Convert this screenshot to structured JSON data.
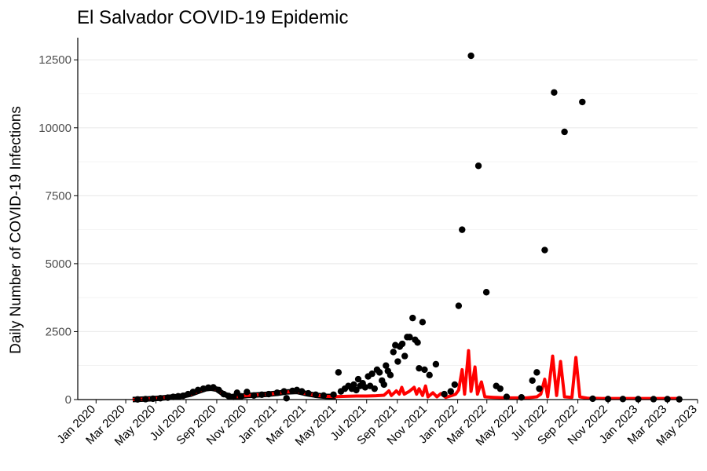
{
  "chart_data": {
    "type": "scatter",
    "title": "El Salvador COVID-19 Epidemic",
    "xlabel": "",
    "ylabel": "Daily Number of COVID-19 Infections",
    "x_axis": {
      "type": "date",
      "range": [
        "2019-11-25",
        "2023-05-01"
      ],
      "ticks": [
        {
          "date": "2020-01-01",
          "label": "Jan 2020"
        },
        {
          "date": "2020-03-01",
          "label": "Mar 2020"
        },
        {
          "date": "2020-05-01",
          "label": "May 2020"
        },
        {
          "date": "2020-07-01",
          "label": "Jul 2020"
        },
        {
          "date": "2020-09-01",
          "label": "Sep 2020"
        },
        {
          "date": "2020-11-01",
          "label": "Nov 2020"
        },
        {
          "date": "2021-01-01",
          "label": "Jan 2021"
        },
        {
          "date": "2021-03-01",
          "label": "Mar 2021"
        },
        {
          "date": "2021-05-01",
          "label": "May 2021"
        },
        {
          "date": "2021-07-01",
          "label": "Jul 2021"
        },
        {
          "date": "2021-09-01",
          "label": "Sep 2021"
        },
        {
          "date": "2021-11-01",
          "label": "Nov 2021"
        },
        {
          "date": "2022-01-01",
          "label": "Jan 2022"
        },
        {
          "date": "2022-03-01",
          "label": "Mar 2022"
        },
        {
          "date": "2022-05-01",
          "label": "May 2022"
        },
        {
          "date": "2022-07-01",
          "label": "Jul 2022"
        },
        {
          "date": "2022-09-01",
          "label": "Sep 2022"
        },
        {
          "date": "2022-11-01",
          "label": "Nov 2022"
        },
        {
          "date": "2023-01-01",
          "label": "Jan 2023"
        },
        {
          "date": "2023-03-01",
          "label": "Mar 2023"
        },
        {
          "date": "2023-05-01",
          "label": "May 2023"
        }
      ]
    },
    "y_axis": {
      "range": [
        0,
        13200
      ],
      "ticks": [
        {
          "value": 0,
          "label": "0"
        },
        {
          "value": 2500,
          "label": "2500"
        },
        {
          "value": 5000,
          "label": "5000"
        },
        {
          "value": 7500,
          "label": "7500"
        },
        {
          "value": 10000,
          "label": "10000"
        },
        {
          "value": 12500,
          "label": "12500"
        }
      ],
      "minor_grid": [
        1250,
        3750,
        6250,
        8750,
        11250
      ]
    },
    "grid": "horizontal",
    "legend": "none",
    "colors": {
      "points": "#000000",
      "line": "#ff0000",
      "grid": "#ebebeb",
      "axis": "#000000"
    },
    "series": [
      {
        "kind": "points",
        "points": [
          [
            "2020-03-25",
            5
          ],
          [
            "2020-04-10",
            15
          ],
          [
            "2020-04-25",
            30
          ],
          [
            "2020-05-10",
            50
          ],
          [
            "2020-05-25",
            70
          ],
          [
            "2020-06-05",
            100
          ],
          [
            "2020-06-15",
            120
          ],
          [
            "2020-06-25",
            140
          ],
          [
            "2020-07-05",
            200
          ],
          [
            "2020-07-15",
            280
          ],
          [
            "2020-07-25",
            350
          ],
          [
            "2020-08-05",
            400
          ],
          [
            "2020-08-15",
            440
          ],
          [
            "2020-08-25",
            450
          ],
          [
            "2020-09-05",
            350
          ],
          [
            "2020-09-15",
            200
          ],
          [
            "2020-09-25",
            130
          ],
          [
            "2020-10-05",
            100
          ],
          [
            "2020-10-12",
            250
          ],
          [
            "2020-10-20",
            120
          ],
          [
            "2020-11-01",
            280
          ],
          [
            "2020-11-15",
            150
          ],
          [
            "2020-12-01",
            180
          ],
          [
            "2020-12-15",
            200
          ],
          [
            "2021-01-01",
            250
          ],
          [
            "2021-01-15",
            300
          ],
          [
            "2021-01-20",
            50
          ],
          [
            "2021-02-01",
            320
          ],
          [
            "2021-02-10",
            350
          ],
          [
            "2021-02-20",
            300
          ],
          [
            "2021-03-05",
            230
          ],
          [
            "2021-03-20",
            180
          ],
          [
            "2021-04-05",
            150
          ],
          [
            "2021-04-25",
            180
          ],
          [
            "2021-05-05",
            1000
          ],
          [
            "2021-05-10",
            300
          ],
          [
            "2021-05-18",
            400
          ],
          [
            "2021-05-25",
            500
          ],
          [
            "2021-06-01",
            400
          ],
          [
            "2021-06-05",
            550
          ],
          [
            "2021-06-10",
            350
          ],
          [
            "2021-06-14",
            750
          ],
          [
            "2021-06-18",
            500
          ],
          [
            "2021-06-23",
            600
          ],
          [
            "2021-06-28",
            450
          ],
          [
            "2021-07-04",
            850
          ],
          [
            "2021-07-08",
            500
          ],
          [
            "2021-07-12",
            950
          ],
          [
            "2021-07-17",
            400
          ],
          [
            "2021-07-22",
            1100
          ],
          [
            "2021-07-27",
            1000
          ],
          [
            "2021-08-01",
            700
          ],
          [
            "2021-08-05",
            550
          ],
          [
            "2021-08-09",
            1250
          ],
          [
            "2021-08-13",
            1050
          ],
          [
            "2021-08-18",
            900
          ],
          [
            "2021-08-24",
            1750
          ],
          [
            "2021-08-28",
            2000
          ],
          [
            "2021-09-02",
            1400
          ],
          [
            "2021-09-06",
            1950
          ],
          [
            "2021-09-11",
            2050
          ],
          [
            "2021-09-16",
            1600
          ],
          [
            "2021-09-21",
            2300
          ],
          [
            "2021-09-26",
            2300
          ],
          [
            "2021-10-02",
            3000
          ],
          [
            "2021-10-07",
            2200
          ],
          [
            "2021-10-12",
            2100
          ],
          [
            "2021-10-15",
            1150
          ],
          [
            "2021-10-22",
            2850
          ],
          [
            "2021-10-26",
            1100
          ],
          [
            "2021-11-05",
            900
          ],
          [
            "2021-11-18",
            1300
          ],
          [
            "2021-12-05",
            200
          ],
          [
            "2021-12-18",
            300
          ],
          [
            "2021-12-26",
            550
          ],
          [
            "2022-01-03",
            3450
          ],
          [
            "2022-01-10",
            6250
          ],
          [
            "2022-01-28",
            12650
          ],
          [
            "2022-02-12",
            8600
          ],
          [
            "2022-02-28",
            3950
          ],
          [
            "2022-03-20",
            500
          ],
          [
            "2022-03-28",
            400
          ],
          [
            "2022-04-10",
            100
          ],
          [
            "2022-05-10",
            80
          ],
          [
            "2022-06-01",
            700
          ],
          [
            "2022-06-10",
            1000
          ],
          [
            "2022-06-15",
            400
          ],
          [
            "2022-06-26",
            5500
          ],
          [
            "2022-07-15",
            11300
          ],
          [
            "2022-08-05",
            9850
          ],
          [
            "2022-09-10",
            10950
          ],
          [
            "2022-10-01",
            30
          ],
          [
            "2022-11-01",
            20
          ],
          [
            "2022-12-01",
            20
          ],
          [
            "2023-01-01",
            15
          ],
          [
            "2023-02-01",
            15
          ],
          [
            "2023-03-01",
            15
          ],
          [
            "2023-03-25",
            10
          ]
        ]
      },
      {
        "kind": "line",
        "points": [
          [
            "2020-03-15",
            0
          ],
          [
            "2020-04-01",
            15
          ],
          [
            "2020-04-20",
            30
          ],
          [
            "2020-05-10",
            50
          ],
          [
            "2020-06-01",
            90
          ],
          [
            "2020-06-20",
            120
          ],
          [
            "2020-07-10",
            200
          ],
          [
            "2020-07-25",
            300
          ],
          [
            "2020-08-10",
            400
          ],
          [
            "2020-08-20",
            420
          ],
          [
            "2020-09-01",
            380
          ],
          [
            "2020-09-15",
            200
          ],
          [
            "2020-10-01",
            100
          ],
          [
            "2020-10-15",
            110
          ],
          [
            "2020-11-01",
            150
          ],
          [
            "2020-11-20",
            170
          ],
          [
            "2020-12-10",
            190
          ],
          [
            "2021-01-01",
            230
          ],
          [
            "2021-01-20",
            280
          ],
          [
            "2021-02-10",
            300
          ],
          [
            "2021-03-01",
            220
          ],
          [
            "2021-03-20",
            160
          ],
          [
            "2021-04-10",
            120
          ],
          [
            "2021-04-30",
            110
          ],
          [
            "2021-05-20",
            120
          ],
          [
            "2021-06-10",
            130
          ],
          [
            "2021-07-01",
            130
          ],
          [
            "2021-07-20",
            140
          ],
          [
            "2021-08-05",
            160
          ],
          [
            "2021-08-15",
            320
          ],
          [
            "2021-08-20",
            150
          ],
          [
            "2021-08-30",
            320
          ],
          [
            "2021-09-05",
            200
          ],
          [
            "2021-09-10",
            450
          ],
          [
            "2021-09-15",
            200
          ],
          [
            "2021-09-25",
            300
          ],
          [
            "2021-10-05",
            450
          ],
          [
            "2021-10-10",
            200
          ],
          [
            "2021-10-15",
            400
          ],
          [
            "2021-10-22",
            150
          ],
          [
            "2021-10-28",
            500
          ],
          [
            "2021-11-02",
            100
          ],
          [
            "2021-11-12",
            250
          ],
          [
            "2021-11-20",
            100
          ],
          [
            "2021-11-28",
            220
          ],
          [
            "2021-12-08",
            80
          ],
          [
            "2021-12-20",
            150
          ],
          [
            "2021-12-28",
            200
          ],
          [
            "2022-01-03",
            350
          ],
          [
            "2022-01-10",
            1100
          ],
          [
            "2022-01-15",
            200
          ],
          [
            "2022-01-23",
            1800
          ],
          [
            "2022-01-28",
            300
          ],
          [
            "2022-02-05",
            1200
          ],
          [
            "2022-02-10",
            200
          ],
          [
            "2022-02-18",
            650
          ],
          [
            "2022-02-25",
            100
          ],
          [
            "2022-03-15",
            80
          ],
          [
            "2022-04-10",
            60
          ],
          [
            "2022-05-20",
            60
          ],
          [
            "2022-06-10",
            100
          ],
          [
            "2022-06-18",
            200
          ],
          [
            "2022-06-26",
            750
          ],
          [
            "2022-07-02",
            100
          ],
          [
            "2022-07-12",
            1600
          ],
          [
            "2022-07-20",
            150
          ],
          [
            "2022-07-28",
            1400
          ],
          [
            "2022-08-05",
            100
          ],
          [
            "2022-08-20",
            80
          ],
          [
            "2022-08-28",
            1550
          ],
          [
            "2022-09-05",
            100
          ],
          [
            "2022-09-20",
            50
          ],
          [
            "2022-10-20",
            40
          ],
          [
            "2022-12-01",
            40
          ],
          [
            "2023-02-01",
            40
          ],
          [
            "2023-03-25",
            40
          ]
        ]
      }
    ]
  }
}
